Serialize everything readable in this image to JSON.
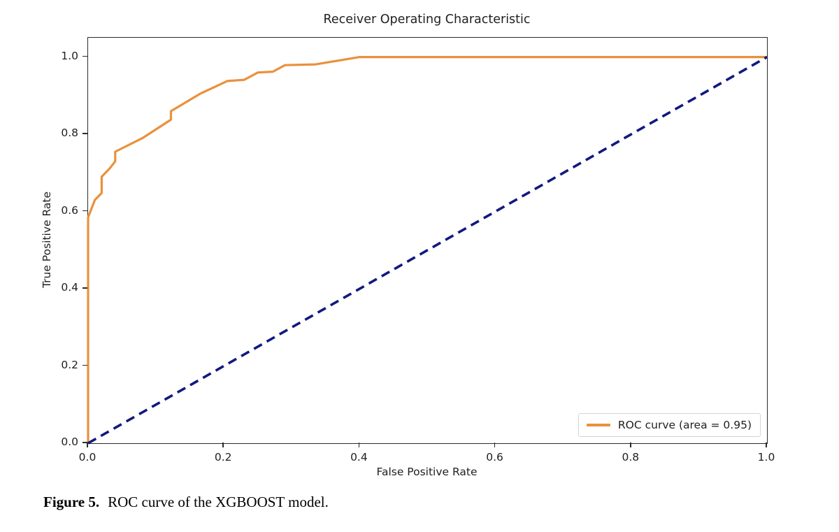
{
  "figure": {
    "title": "Receiver Operating Characteristic",
    "x_axis_label": "False Positive Rate",
    "y_axis_label": "True Positive Rate",
    "legend": {
      "label": "ROC curve (area = 0.95)"
    },
    "caption": {
      "prefix": "Figure 5.",
      "text": "ROC curve of the XGBOOST model."
    }
  },
  "colors": {
    "roc_curve": "#e9913c",
    "chance_line": "#11197f",
    "spine": "#2b2b2b",
    "legend_border": "#d4d4d4"
  },
  "chart_data": {
    "type": "line",
    "title": "Receiver Operating Characteristic",
    "xlabel": "False Positive Rate",
    "ylabel": "True Positive Rate",
    "xlim": [
      0.0,
      1.0
    ],
    "ylim": [
      0.0,
      1.05
    ],
    "grid": false,
    "legend_position": "lower right",
    "auc": 0.95,
    "xticks": [
      0.0,
      0.2,
      0.4,
      0.6,
      0.8,
      1.0
    ],
    "yticks": [
      0.0,
      0.2,
      0.4,
      0.6,
      0.8,
      1.0
    ],
    "xtick_labels": [
      "0.0",
      "0.2",
      "0.4",
      "0.6",
      "0.8",
      "1.0"
    ],
    "ytick_labels": [
      "0.0",
      "0.2",
      "0.4",
      "0.6",
      "0.8",
      "1.0"
    ],
    "series": [
      {
        "name": "ROC curve (area = 0.95)",
        "id": "roc-curve-line",
        "color": "#e9913c",
        "style": "solid",
        "width": 3.2,
        "points": [
          [
            0.0,
            0.0
          ],
          [
            0.0,
            0.585
          ],
          [
            0.01,
            0.63
          ],
          [
            0.02,
            0.648
          ],
          [
            0.02,
            0.69
          ],
          [
            0.032,
            0.712
          ],
          [
            0.04,
            0.73
          ],
          [
            0.04,
            0.755
          ],
          [
            0.08,
            0.79
          ],
          [
            0.122,
            0.838
          ],
          [
            0.122,
            0.86
          ],
          [
            0.165,
            0.905
          ],
          [
            0.205,
            0.938
          ],
          [
            0.23,
            0.941
          ],
          [
            0.25,
            0.96
          ],
          [
            0.272,
            0.962
          ],
          [
            0.29,
            0.979
          ],
          [
            0.335,
            0.981
          ],
          [
            0.4,
            1.0
          ],
          [
            1.0,
            1.0
          ]
        ]
      },
      {
        "name": "chance-diagonal",
        "id": "chance-diagonal-line",
        "color": "#11197f",
        "style": "dashed",
        "width": 3.6,
        "points": [
          [
            0.0,
            0.0
          ],
          [
            1.0,
            1.0
          ]
        ]
      }
    ]
  }
}
